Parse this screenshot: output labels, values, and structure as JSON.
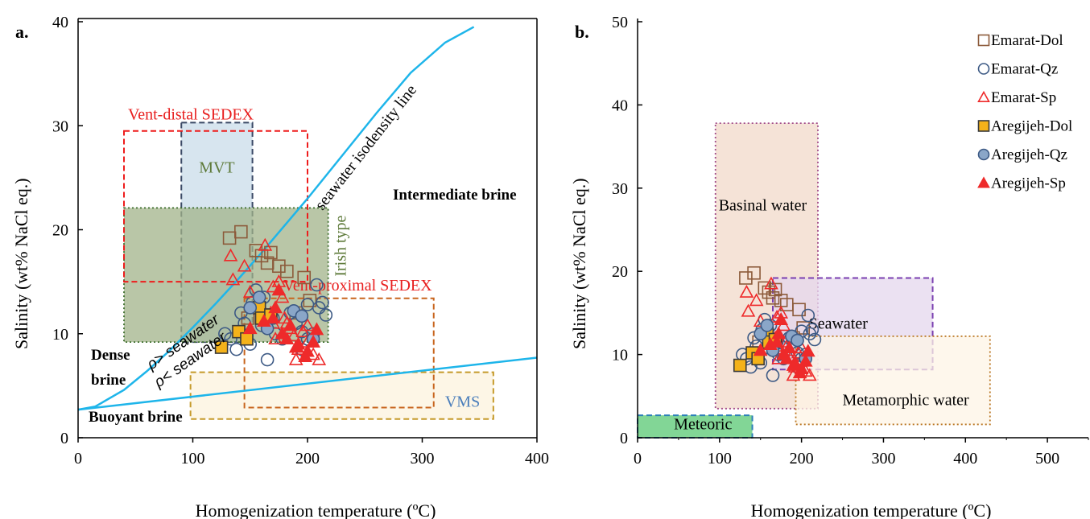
{
  "chart_data": [
    {
      "id": "a",
      "type": "scatter",
      "panel_label": "a.",
      "xlabel": "Homogenization temperature (ºC)",
      "ylabel": "Salinity  (wt% NaCl eq.)",
      "xlim": [
        0,
        400
      ],
      "ylim": [
        0,
        40
      ],
      "xticks": [
        0,
        100,
        200,
        300,
        400
      ],
      "yticks": [
        0,
        10,
        20,
        30,
        40
      ],
      "grid": false,
      "regions": [
        {
          "label": "Vent-distal SEDEX",
          "x": [
            40,
            200
          ],
          "y": [
            15,
            29.5
          ],
          "fill": "none",
          "stroke": "#ee1c1c",
          "label_color": "#e81e1e"
        },
        {
          "label": "MVT",
          "x": [
            90,
            152
          ],
          "y": [
            9.2,
            30.3
          ],
          "fill": "#c9dcea",
          "stroke": "#3b4a66",
          "label_color": "#5e7a3a"
        },
        {
          "label": "Irish type",
          "x": [
            40,
            218
          ],
          "y": [
            9.2,
            22.1
          ],
          "fill": "#a2b38a",
          "stroke": "#3c6e2c",
          "label_color": "#5e7a3a"
        },
        {
          "label": "Vent-proximal SEDEX",
          "x": [
            145,
            310
          ],
          "y": [
            2.9,
            13.4
          ],
          "fill": "none",
          "stroke": "#c8651e",
          "label_color": "#e81e1e"
        },
        {
          "label": "VMS",
          "x": [
            98,
            362
          ],
          "y": [
            1.8,
            6.3
          ],
          "fill": "#fcf3dd",
          "stroke": "#c59a2a",
          "label_color": "#4a7ebb"
        }
      ],
      "annotations": [
        {
          "text": "seawater isodensity line",
          "rotate": -52
        },
        {
          "text": "Intermediate brine"
        },
        {
          "text": "Dense",
          "text2": "brine"
        },
        {
          "text": "Buoyant brine"
        },
        {
          "text": "ρ> seawater",
          "rotate": -35
        },
        {
          "text": "ρ< seawater",
          "rotate": -35
        }
      ],
      "lines": [
        {
          "name": "seawater isodensity line",
          "x": [
            0,
            15,
            40,
            60,
            80,
            100,
            120,
            140,
            160,
            180,
            200,
            230,
            260,
            290,
            320,
            345
          ],
          "y": [
            2.7,
            3.0,
            4.6,
            6.4,
            8.4,
            10.6,
            12.9,
            15.3,
            17.8,
            20.4,
            23.0,
            27.1,
            31.2,
            35.1,
            38.0,
            39.5
          ],
          "color": "#1eb5ea"
        },
        {
          "name": "lower density line",
          "x": [
            0,
            400
          ],
          "y": [
            2.7,
            7.7
          ],
          "color": "#1eb5ea"
        }
      ],
      "series": [
        {
          "name": "Emarat-Dol",
          "marker": "square",
          "fill": "none",
          "stroke": "#8c5a3a",
          "points": [
            [
              132,
              19.2
            ],
            [
              142,
              19.8
            ],
            [
              155,
              18.0
            ],
            [
              160,
              17.5
            ],
            [
              165,
              16.8
            ],
            [
              168,
              17.8
            ],
            [
              175,
              16.5
            ],
            [
              182,
              16.0
            ],
            [
              197,
              15.4
            ],
            [
              202,
              13.2
            ],
            [
              165,
              11.8
            ],
            [
              148,
              11.5
            ],
            [
              190,
              12.0
            ]
          ]
        },
        {
          "name": "Emarat-Qz",
          "marker": "circle",
          "fill": "none",
          "stroke": "#3d5a85",
          "points": [
            [
              128,
              10.0
            ],
            [
              133,
              9.5
            ],
            [
              138,
              8.5
            ],
            [
              142,
              12.0
            ],
            [
              145,
              11.0
            ],
            [
              150,
              9.0
            ],
            [
              152,
              13.0
            ],
            [
              155,
              14.2
            ],
            [
              158,
              12.5
            ],
            [
              160,
              10.8
            ],
            [
              162,
              13.5
            ],
            [
              165,
              7.5
            ],
            [
              170,
              11.5
            ],
            [
              172,
              10.0
            ],
            [
              178,
              9.5
            ],
            [
              185,
              12.0
            ],
            [
              190,
              11.0
            ],
            [
              195,
              10.2
            ],
            [
              200,
              12.8
            ],
            [
              205,
              10.0
            ],
            [
              208,
              14.7
            ],
            [
              210,
              12.5
            ],
            [
              213,
              13.0
            ],
            [
              216,
              11.8
            ],
            [
              200,
              9.5
            ],
            [
              195,
              8.5
            ]
          ]
        },
        {
          "name": "Emarat-Sp",
          "marker": "triangle",
          "fill": "none",
          "stroke": "#ee2a2a",
          "points": [
            [
              133,
              17.5
            ],
            [
              135,
              15.2
            ],
            [
              145,
              16.5
            ],
            [
              150,
              14.0
            ],
            [
              158,
              13.0
            ],
            [
              163,
              18.5
            ],
            [
              168,
              12.0
            ],
            [
              170,
              14.5
            ],
            [
              175,
              15.0
            ],
            [
              178,
              13.5
            ],
            [
              180,
              11.5
            ],
            [
              185,
              10.5
            ],
            [
              188,
              9.8
            ],
            [
              192,
              8.5
            ],
            [
              196,
              10.2
            ],
            [
              200,
              9.2
            ],
            [
              205,
              8.0
            ],
            [
              210,
              7.5
            ],
            [
              172,
              9.5
            ],
            [
              182,
              11.0
            ],
            [
              190,
              7.5
            ],
            [
              200,
              10.8
            ],
            [
              170,
              11.0
            ]
          ]
        },
        {
          "name": "Aregijeh-Dol",
          "marker": "square",
          "fill": "#f4b21a",
          "stroke": "#3a3a3a",
          "points": [
            [
              125,
              8.7
            ],
            [
              140,
              10.2
            ],
            [
              147,
              9.5
            ],
            [
              158,
              12.5
            ],
            [
              160,
              11.5
            ],
            [
              168,
              11.8
            ]
          ]
        },
        {
          "name": "Aregijeh-Qz",
          "marker": "circle",
          "fill": "#8aa6c8",
          "stroke": "#3d5a85",
          "points": [
            [
              150,
              12.5
            ],
            [
              158,
              13.5
            ],
            [
              165,
              10.5
            ],
            [
              188,
              12.2
            ],
            [
              195,
              11.7
            ],
            [
              205,
              9.5
            ]
          ]
        },
        {
          "name": "Aregijeh-Sp",
          "marker": "triangle",
          "fill": "#ee2a2a",
          "stroke": "#ee2a2a",
          "points": [
            [
              150,
              10.5
            ],
            [
              162,
              11.2
            ],
            [
              170,
              11.5
            ],
            [
              172,
              12.5
            ],
            [
              175,
              14.2
            ],
            [
              178,
              10.0
            ],
            [
              182,
              9.5
            ],
            [
              185,
              10.8
            ],
            [
              192,
              9.0
            ],
            [
              198,
              7.8
            ],
            [
              205,
              9.2
            ],
            [
              208,
              10.4
            ],
            [
              200,
              8.3
            ],
            [
              190,
              8.7
            ]
          ]
        }
      ]
    },
    {
      "id": "b",
      "type": "scatter",
      "panel_label": "b.",
      "xlabel": "Homogenization temperature (ºC)",
      "ylabel": "Salinity  (wt% NaCl eq.)",
      "xlim": [
        0,
        550
      ],
      "ylim": [
        0,
        50
      ],
      "xticks": [
        0,
        100,
        200,
        300,
        400,
        500
      ],
      "yticks": [
        0,
        10,
        20,
        30,
        40,
        50
      ],
      "grid": false,
      "legend_position": "top-right",
      "regions": [
        {
          "label": "Basinal water",
          "x": [
            95,
            220
          ],
          "y": [
            3.5,
            37.8
          ],
          "fill": "#f2d9ca",
          "stroke": "#a24c8a",
          "label_color": "#000000"
        },
        {
          "label": "Seawater",
          "x": [
            165,
            360
          ],
          "y": [
            8.2,
            19.2
          ],
          "fill": "#e4d7ee",
          "stroke": "#7a3fb0",
          "label_color": "#000000"
        },
        {
          "label": "Metamorphic water",
          "x": [
            193,
            430
          ],
          "y": [
            1.6,
            12.2
          ],
          "fill": "#fdf4e6",
          "stroke": "#b9741e",
          "label_color": "#000000"
        },
        {
          "label": "Meteoric",
          "x": [
            0,
            140
          ],
          "y": [
            0,
            2.7
          ],
          "fill": "#58c873",
          "stroke": "#2b7fb8",
          "label_color": "#000000"
        }
      ],
      "series": [
        {
          "name": "Emarat-Dol",
          "marker": "square",
          "fill": "none",
          "stroke": "#8c5a3a",
          "points": [
            [
              132,
              19.2
            ],
            [
              142,
              19.8
            ],
            [
              155,
              18.0
            ],
            [
              160,
              17.5
            ],
            [
              165,
              16.8
            ],
            [
              168,
              17.8
            ],
            [
              175,
              16.5
            ],
            [
              182,
              16.0
            ],
            [
              197,
              15.4
            ],
            [
              202,
              13.2
            ],
            [
              165,
              11.8
            ],
            [
              148,
              11.5
            ],
            [
              190,
              12.0
            ]
          ]
        },
        {
          "name": "Emarat-Qz",
          "marker": "circle",
          "fill": "none",
          "stroke": "#3d5a85",
          "points": [
            [
              128,
              10.0
            ],
            [
              133,
              9.5
            ],
            [
              138,
              8.5
            ],
            [
              142,
              12.0
            ],
            [
              145,
              11.0
            ],
            [
              150,
              9.0
            ],
            [
              152,
              13.0
            ],
            [
              155,
              14.2
            ],
            [
              158,
              12.5
            ],
            [
              160,
              10.8
            ],
            [
              162,
              13.5
            ],
            [
              165,
              7.5
            ],
            [
              170,
              11.5
            ],
            [
              172,
              10.0
            ],
            [
              178,
              9.5
            ],
            [
              185,
              12.0
            ],
            [
              190,
              11.0
            ],
            [
              195,
              10.2
            ],
            [
              200,
              12.8
            ],
            [
              205,
              10.0
            ],
            [
              208,
              14.7
            ],
            [
              210,
              12.5
            ],
            [
              213,
              13.0
            ],
            [
              216,
              11.8
            ],
            [
              200,
              9.5
            ],
            [
              195,
              8.5
            ]
          ]
        },
        {
          "name": "Emarat-Sp",
          "marker": "triangle",
          "fill": "none",
          "stroke": "#ee2a2a",
          "points": [
            [
              133,
              17.5
            ],
            [
              135,
              15.2
            ],
            [
              145,
              16.5
            ],
            [
              150,
              14.0
            ],
            [
              158,
              13.0
            ],
            [
              163,
              18.5
            ],
            [
              168,
              12.0
            ],
            [
              170,
              14.5
            ],
            [
              175,
              15.0
            ],
            [
              178,
              13.5
            ],
            [
              180,
              11.5
            ],
            [
              185,
              10.5
            ],
            [
              188,
              9.8
            ],
            [
              192,
              8.5
            ],
            [
              196,
              10.2
            ],
            [
              200,
              9.2
            ],
            [
              205,
              8.0
            ],
            [
              210,
              7.5
            ],
            [
              172,
              9.5
            ],
            [
              182,
              11.0
            ],
            [
              190,
              7.5
            ],
            [
              200,
              10.8
            ],
            [
              170,
              11.0
            ]
          ]
        },
        {
          "name": "Aregijeh-Dol",
          "marker": "square",
          "fill": "#f4b21a",
          "stroke": "#3a3a3a",
          "points": [
            [
              125,
              8.7
            ],
            [
              140,
              10.2
            ],
            [
              147,
              9.5
            ],
            [
              158,
              12.5
            ],
            [
              160,
              11.5
            ],
            [
              168,
              11.8
            ]
          ]
        },
        {
          "name": "Aregijeh-Qz",
          "marker": "circle",
          "fill": "#8aa6c8",
          "stroke": "#3d5a85",
          "points": [
            [
              150,
              12.5
            ],
            [
              158,
              13.5
            ],
            [
              165,
              10.5
            ],
            [
              188,
              12.2
            ],
            [
              195,
              11.7
            ],
            [
              205,
              9.5
            ]
          ]
        },
        {
          "name": "Aregijeh-Sp",
          "marker": "triangle",
          "fill": "#ee2a2a",
          "stroke": "#ee2a2a",
          "points": [
            [
              150,
              10.5
            ],
            [
              162,
              11.2
            ],
            [
              170,
              11.5
            ],
            [
              172,
              12.5
            ],
            [
              175,
              14.2
            ],
            [
              178,
              10.0
            ],
            [
              182,
              9.5
            ],
            [
              185,
              10.8
            ],
            [
              192,
              9.0
            ],
            [
              198,
              7.8
            ],
            [
              205,
              9.2
            ],
            [
              208,
              10.4
            ],
            [
              200,
              8.3
            ],
            [
              190,
              8.7
            ]
          ]
        }
      ]
    }
  ]
}
